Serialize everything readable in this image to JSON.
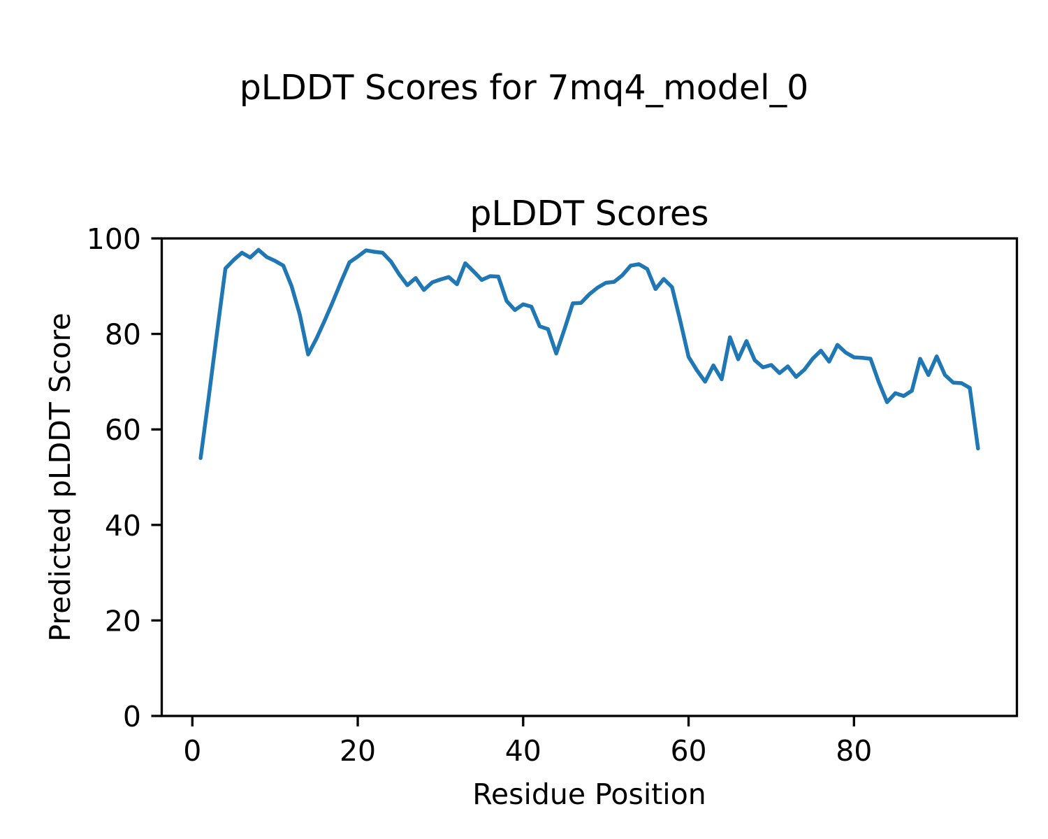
{
  "figure": {
    "suptitle": "pLDDT Scores for 7mq4_model_0",
    "background": "#ffffff"
  },
  "chart_data": {
    "type": "line",
    "title": "pLDDT Scores",
    "xlabel": "Residue Position",
    "ylabel": "Predicted pLDDT Score",
    "xlim": [
      -3.7,
      99.7
    ],
    "ylim": [
      0,
      100
    ],
    "xticks": [
      0,
      20,
      40,
      60,
      80
    ],
    "yticks": [
      0,
      20,
      40,
      60,
      80,
      100
    ],
    "grid": false,
    "legend_position": "none",
    "line_color": "#1f77b4",
    "axis_color": "#000000",
    "series": [
      {
        "name": "pLDDT",
        "x": [
          1,
          2,
          3,
          4,
          5,
          6,
          7,
          8,
          9,
          10,
          11,
          12,
          13,
          14,
          15,
          16,
          17,
          18,
          19,
          20,
          21,
          22,
          23,
          24,
          25,
          26,
          27,
          28,
          29,
          30,
          31,
          32,
          33,
          34,
          35,
          36,
          37,
          38,
          39,
          40,
          41,
          42,
          43,
          44,
          45,
          46,
          47,
          48,
          49,
          50,
          51,
          52,
          53,
          54,
          55,
          56,
          57,
          58,
          59,
          60,
          61,
          62,
          63,
          64,
          65,
          66,
          67,
          68,
          69,
          70,
          71,
          72,
          73,
          74,
          75,
          76,
          77,
          78,
          79,
          80,
          81,
          82,
          83,
          84,
          85,
          86,
          87,
          88,
          89,
          90,
          91,
          92,
          93,
          94,
          95
        ],
        "values": [
          54.0,
          67.0,
          80.5,
          93.7,
          95.5,
          97.0,
          96.0,
          97.6,
          96.1,
          95.3,
          94.3,
          90.0,
          84.0,
          75.7,
          79.0,
          82.8,
          86.8,
          91.0,
          95.0,
          96.2,
          97.5,
          97.2,
          97.0,
          95.2,
          92.5,
          90.2,
          91.7,
          89.2,
          90.8,
          91.4,
          91.9,
          90.4,
          94.8,
          93.1,
          91.3,
          92.1,
          92.0,
          86.9,
          85.0,
          86.2,
          85.7,
          81.6,
          81.0,
          75.9,
          81.0,
          86.4,
          86.5,
          88.3,
          89.7,
          90.7,
          90.9,
          92.3,
          94.3,
          94.6,
          93.6,
          89.4,
          91.5,
          89.8,
          82.7,
          75.2,
          72.4,
          70.0,
          73.4,
          70.5,
          79.3,
          74.7,
          78.5,
          74.5,
          73.0,
          73.5,
          71.8,
          73.2,
          71.0,
          72.5,
          74.8,
          76.5,
          74.2,
          77.7,
          76.1,
          75.1,
          75.0,
          74.8,
          69.9,
          65.7,
          67.6,
          67.0,
          68.1,
          74.8,
          71.4,
          75.3,
          71.4,
          69.8,
          69.7,
          68.7,
          56.0
        ]
      }
    ]
  }
}
